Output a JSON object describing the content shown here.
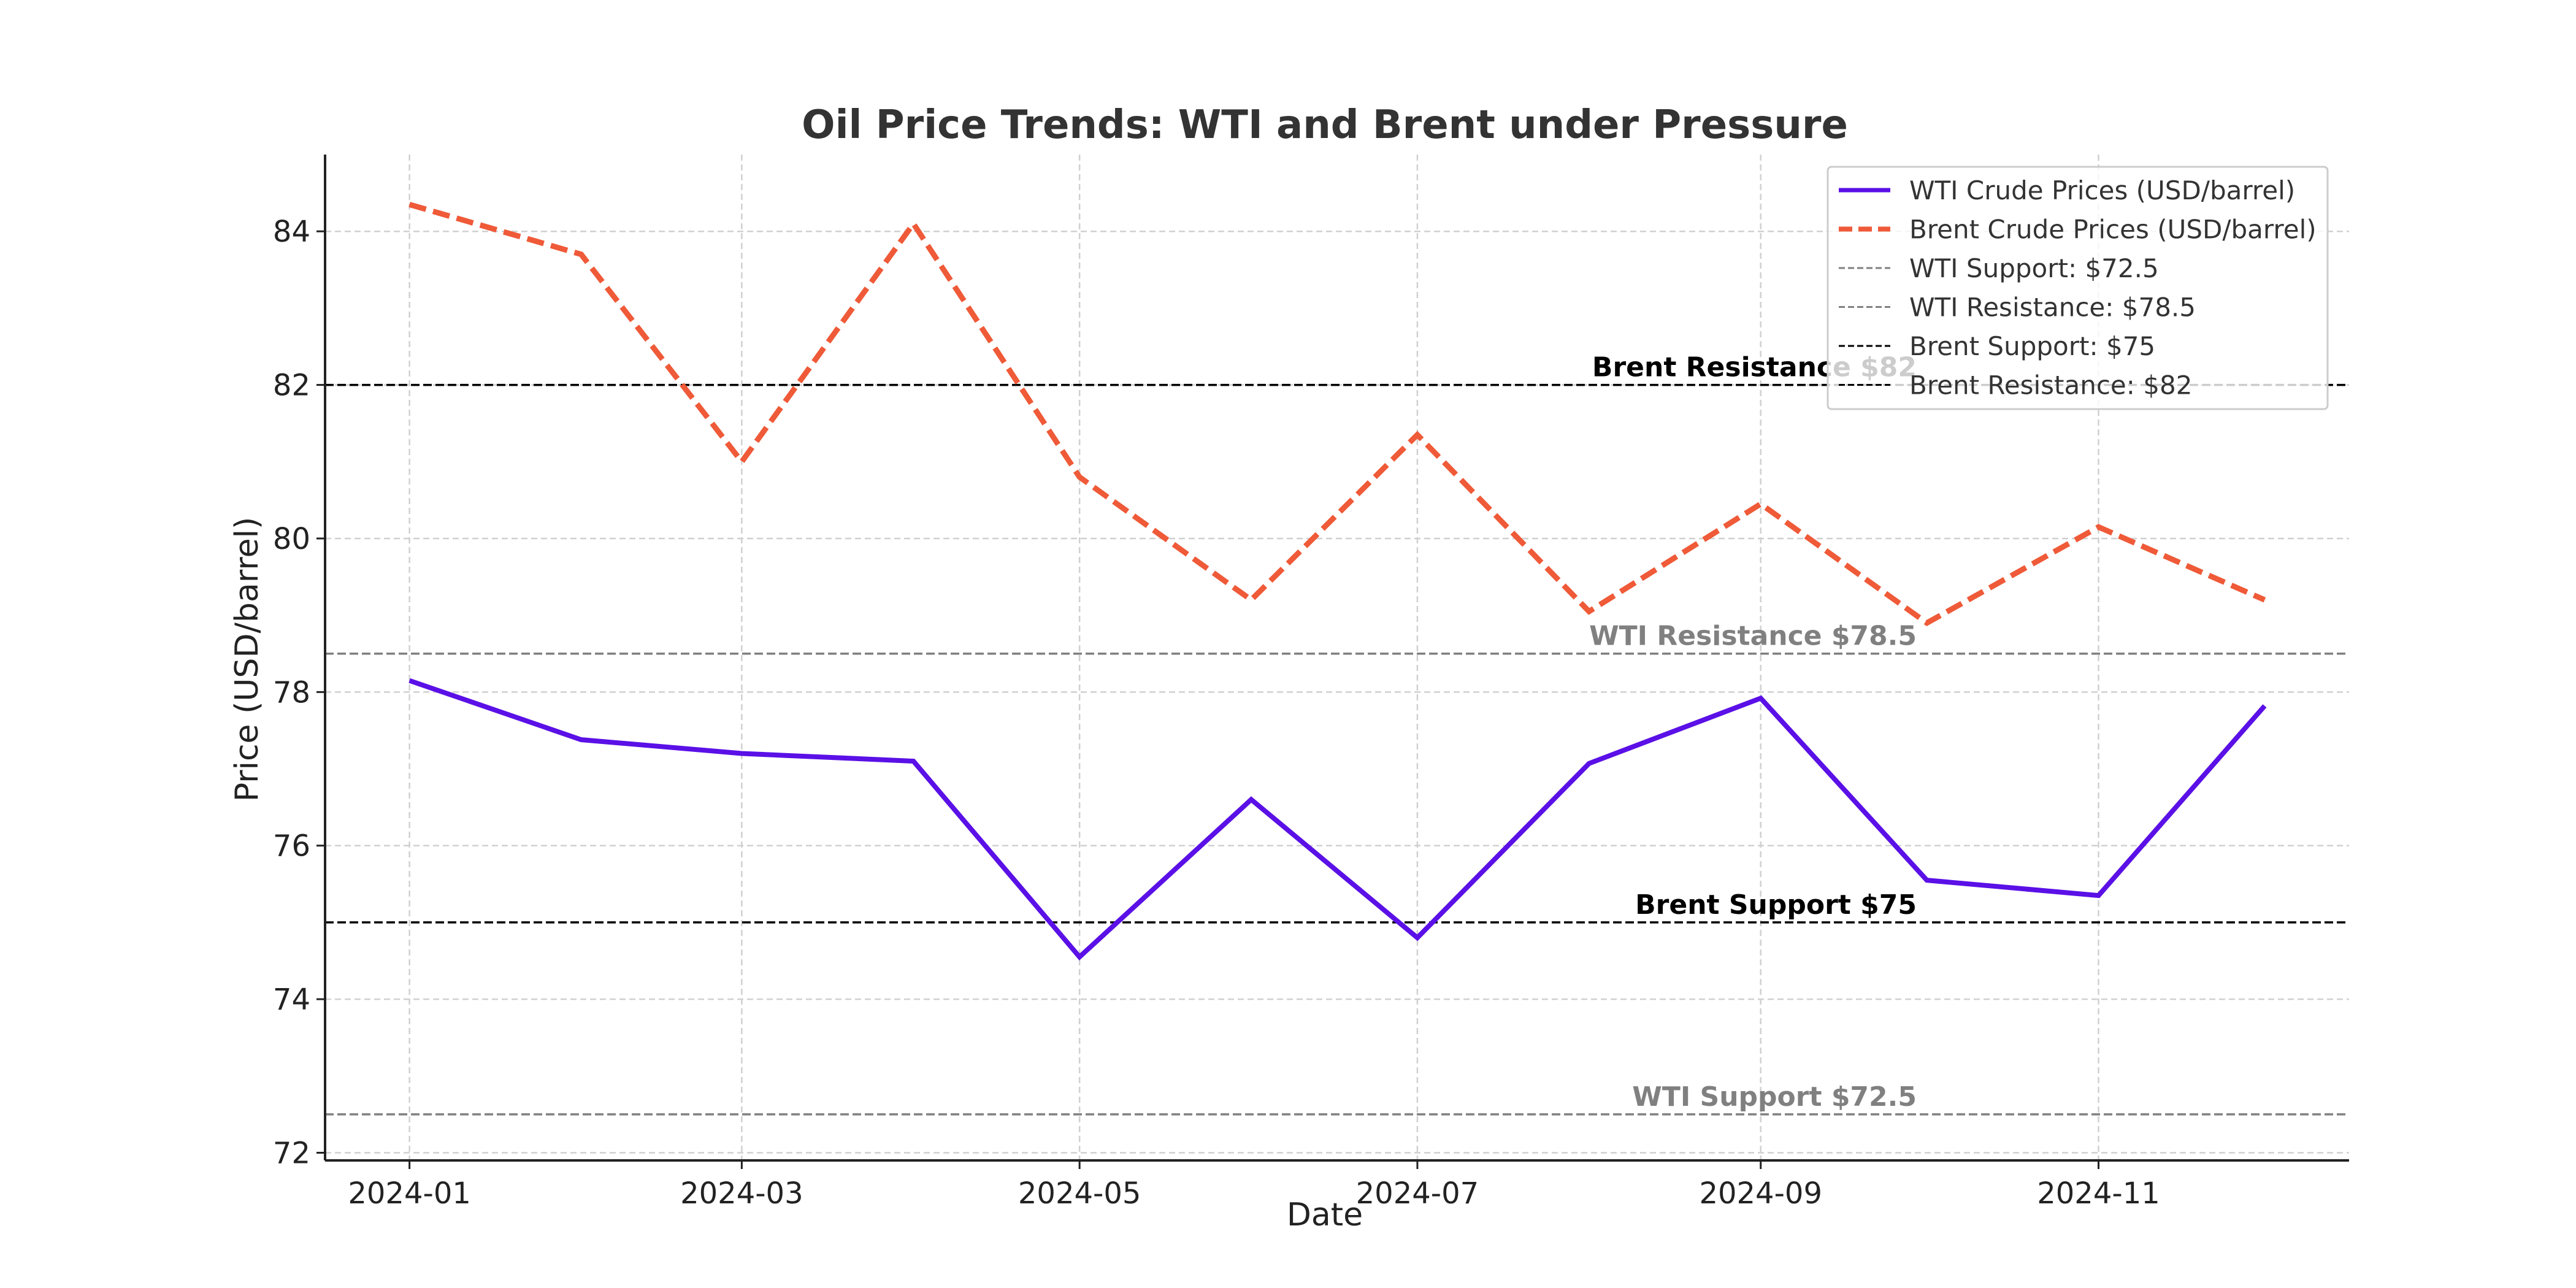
{
  "chart_data": {
    "type": "line",
    "title": "Oil Price Trends: WTI and Brent under Pressure",
    "xlabel": "Date",
    "ylabel": "Price (USD/barrel)",
    "x": [
      "2024-01-01",
      "2024-02-01",
      "2024-03-01",
      "2024-04-01",
      "2024-05-01",
      "2024-06-01",
      "2024-07-01",
      "2024-08-01",
      "2024-09-01",
      "2024-10-01",
      "2024-11-01",
      "2024-12-01"
    ],
    "x_ticks": [
      "2024-01",
      "2024-03",
      "2024-05",
      "2024-07",
      "2024-09",
      "2024-11"
    ],
    "ylim": [
      71.9,
      85.0
    ],
    "y_ticks": [
      72,
      74,
      76,
      78,
      80,
      82,
      84
    ],
    "grid": true,
    "legend_position": "top-right",
    "series": [
      {
        "name": "WTI Crude Prices (USD/barrel)",
        "color": "#5a10e6",
        "style": "solid",
        "values": [
          78.15,
          77.38,
          77.2,
          77.1,
          74.55,
          76.6,
          74.8,
          77.07,
          77.92,
          75.55,
          75.35,
          77.82
        ]
      },
      {
        "name": "Brent Crude Prices (USD/barrel)",
        "color": "#ef5a38",
        "style": "dashed",
        "values": [
          84.35,
          83.7,
          81.0,
          84.1,
          80.8,
          79.2,
          81.35,
          79.05,
          80.45,
          78.9,
          80.15,
          79.2
        ]
      }
    ],
    "reference_lines": [
      {
        "name": "WTI Support: $72.5",
        "label": "WTI Support $72.5",
        "value": 72.5,
        "color": "#808080"
      },
      {
        "name": "WTI Resistance: $78.5",
        "label": "WTI Resistance $78.5",
        "value": 78.5,
        "color": "#808080"
      },
      {
        "name": "Brent Support: $75",
        "label": "Brent Support $75",
        "value": 75,
        "color": "#000000"
      },
      {
        "name": "Brent Resistance: $82",
        "label": "Brent Resistance $82",
        "value": 82,
        "color": "#000000"
      }
    ]
  }
}
